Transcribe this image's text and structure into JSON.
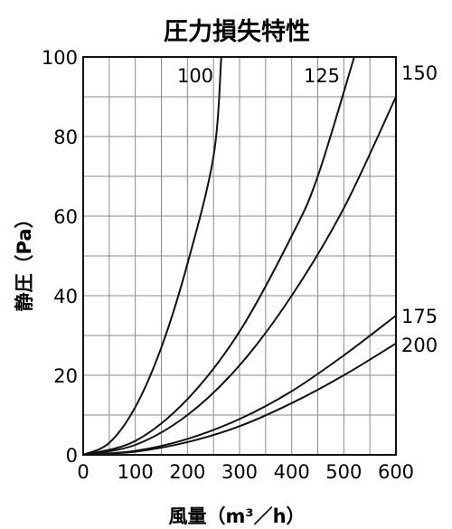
{
  "chart_data": {
    "type": "line",
    "title": "圧力損失特性",
    "xlabel": "風量（m³／h）",
    "ylabel": "静圧（Pa）",
    "xlim": [
      0,
      600
    ],
    "ylim": [
      0,
      100
    ],
    "xticks": [
      "0",
      "100",
      "200",
      "300",
      "400",
      "500",
      "600"
    ],
    "yticks": [
      "0",
      "20",
      "40",
      "60",
      "80",
      "100"
    ],
    "grid": true,
    "legend": "inline labels at curve ends",
    "series": [
      {
        "name": "100",
        "x": [
          0,
          50,
          100,
          150,
          200,
          250,
          265
        ],
        "y": [
          0,
          3.0,
          12.0,
          27.0,
          48.0,
          75.0,
          100
        ]
      },
      {
        "name": "125",
        "x": [
          0,
          100,
          200,
          300,
          400,
          450,
          520
        ],
        "y": [
          0,
          3.5,
          14.0,
          31.0,
          55.0,
          70.0,
          100
        ]
      },
      {
        "name": "150",
        "x": [
          0,
          100,
          200,
          300,
          400,
          500,
          600
        ],
        "y": [
          0,
          2.5,
          10.0,
          22.5,
          40.0,
          62.0,
          90.0
        ]
      },
      {
        "name": "175",
        "x": [
          0,
          100,
          200,
          300,
          400,
          500,
          600
        ],
        "y": [
          0,
          1.0,
          4.0,
          9.0,
          16.0,
          25.0,
          35.0
        ]
      },
      {
        "name": "200",
        "x": [
          0,
          100,
          200,
          300,
          400,
          500,
          600
        ],
        "y": [
          0,
          0.8,
          3.2,
          7.2,
          13.0,
          20.0,
          28.0
        ]
      }
    ]
  }
}
